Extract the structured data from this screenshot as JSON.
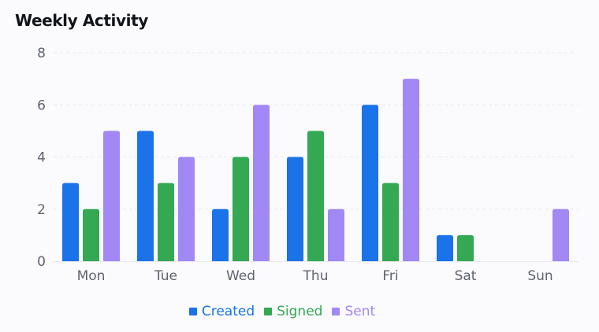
{
  "chart_data": {
    "type": "bar",
    "title": "Weekly Activity",
    "categories": [
      "Mon",
      "Tue",
      "Wed",
      "Thu",
      "Fri",
      "Sat",
      "Sun"
    ],
    "series": [
      {
        "name": "Created",
        "color": "#1a73e8",
        "values": [
          3,
          5,
          2,
          4,
          6,
          1,
          0
        ]
      },
      {
        "name": "Signed",
        "color": "#34a853",
        "values": [
          2,
          3,
          4,
          5,
          3,
          1,
          0
        ]
      },
      {
        "name": "Sent",
        "color": "#a188f4",
        "values": [
          5,
          4,
          6,
          2,
          7,
          0,
          2
        ]
      }
    ],
    "ylim": [
      0,
      8
    ],
    "yticks": [
      0,
      2,
      4,
      6,
      8
    ],
    "grid": true,
    "legend_position": "bottom-center"
  }
}
